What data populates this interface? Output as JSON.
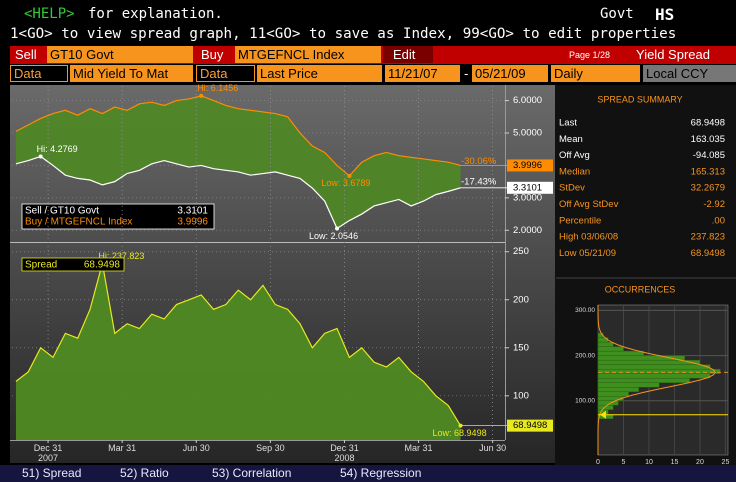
{
  "header": {
    "help_key": "<HELP>",
    "help_text": "for explanation.",
    "market": "Govt",
    "function": "HS",
    "instructions": "1<GO> to view spread graph, 11<GO> to save as Index, 99<GO> to edit properties"
  },
  "form": {
    "sell_label": "Sell",
    "sell_security": "GT10 Govt",
    "buy_label": "Buy",
    "buy_security": "MTGEFNCL Index",
    "edit": "Edit",
    "page": "Page 1/28",
    "view": "Yield Spread",
    "sell_data_label": "Data",
    "sell_field": "Mid Yield To Mat",
    "buy_data_label": "Data",
    "buy_field": "Last Price",
    "start_date": "11/21/07",
    "date_separator": "-",
    "end_date": "05/21/09",
    "periodicity": "Daily",
    "currency": "Local CCY"
  },
  "chart_data": [
    {
      "type": "line",
      "x": [
        0,
        0.5,
        1,
        1.5,
        2,
        2.5,
        3,
        3.5,
        4,
        4.5,
        5,
        5.5,
        6,
        6.5,
        7,
        7.5,
        8,
        8.5,
        9,
        9.5,
        10,
        10.5,
        11,
        11.5,
        12,
        12.5,
        13,
        13.5,
        14,
        14.5,
        15,
        15.5,
        16,
        16.5,
        17,
        17.5,
        18
      ],
      "series": [
        {
          "name": "Sell / GT10 Govt",
          "color": "#ffffff",
          "values": [
            4.05,
            4.15,
            4.2769,
            4.0,
            3.7,
            3.6,
            3.55,
            3.4,
            3.5,
            3.75,
            3.85,
            4.05,
            4.15,
            4.05,
            3.95,
            4.0,
            3.9,
            3.85,
            3.8,
            3.7,
            3.75,
            3.8,
            3.7,
            3.6,
            3.3,
            2.9,
            2.0546,
            2.3,
            2.5,
            2.75,
            2.85,
            2.95,
            2.75,
            2.9,
            3.1,
            3.2,
            3.3101
          ],
          "high_label": "Hi: 4.2769",
          "low_label": "Low: 2.0546",
          "change_label": "-17.43%"
        },
        {
          "name": "Buy / MTGEFNCL Index",
          "color": "#ff8c00",
          "values": [
            5.05,
            5.25,
            5.45,
            5.6,
            5.7,
            5.55,
            5.75,
            5.6,
            5.8,
            5.7,
            5.9,
            5.95,
            5.85,
            6.0,
            6.05,
            6.1456,
            6.0,
            5.85,
            5.75,
            5.7,
            5.65,
            5.6,
            5.5,
            5.0,
            4.6,
            4.4,
            4.0,
            3.6789,
            4.1,
            4.3,
            4.4,
            4.3,
            4.25,
            4.2,
            4.15,
            4.1,
            3.9996
          ],
          "high_label": "Hi: 6.1456",
          "low_label": "Low: 3.6789",
          "change_label": "-30.06%"
        }
      ],
      "xlim": [
        -0.16,
        19.8
      ],
      "ylim": [
        1.7,
        6.45
      ],
      "yticks": [
        {
          "value": 2,
          "label": "2.0000"
        },
        {
          "value": 3,
          "label": "3.0000"
        },
        {
          "value": 4,
          "label": "4.0000"
        },
        {
          "value": 5,
          "label": "5.0000"
        },
        {
          "value": 6,
          "label": "6.0000"
        }
      ]
    },
    {
      "type": "area",
      "x": [
        0,
        0.5,
        1,
        1.5,
        2,
        2.5,
        3,
        3.5,
        4,
        4.5,
        5,
        5.5,
        6,
        6.5,
        7,
        7.5,
        8,
        8.5,
        9,
        9.5,
        10,
        10.5,
        11,
        11.5,
        12,
        12.5,
        13,
        13.5,
        14,
        14.5,
        15,
        15.5,
        16,
        16.5,
        17,
        17.5,
        18
      ],
      "series": [
        {
          "name": "Spread",
          "color": "#e8e820",
          "values": [
            115,
            125,
            150,
            140,
            165,
            160,
            190,
            237.823,
            165,
            175,
            170,
            185,
            180,
            195,
            200,
            205,
            190,
            195,
            210,
            200,
            215,
            195,
            190,
            175,
            150,
            165,
            170,
            140,
            150,
            135,
            130,
            140,
            125,
            115,
            100,
            90,
            68.9498
          ],
          "high_label": "Hi: 237.823",
          "low_label": "Low: 68.9498"
        }
      ],
      "xlim": [
        -0.16,
        19.8
      ],
      "ylim": [
        54,
        257
      ],
      "xticks": [
        {
          "value": 1.3,
          "label": "Dec 31\n2007"
        },
        {
          "value": 4.3,
          "label": "Mar 31"
        },
        {
          "value": 7.3,
          "label": "Jun 30"
        },
        {
          "value": 10.3,
          "label": "Sep 30"
        },
        {
          "value": 13.3,
          "label": "Dec 31\n2008"
        },
        {
          "value": 16.3,
          "label": "Mar 31"
        },
        {
          "value": 19.3,
          "label": "Jun 30"
        }
      ],
      "yticks": [
        100,
        150,
        200,
        250
      ]
    },
    {
      "type": "histogram",
      "title": "OCCURRENCES",
      "color": "#3f8f1f",
      "bins": [
        60,
        70,
        80,
        90,
        100,
        110,
        120,
        130,
        140,
        150,
        160,
        170,
        180,
        190,
        200,
        210,
        220,
        230,
        240,
        250
      ],
      "values": [
        3,
        2,
        3,
        4,
        5,
        6,
        8,
        12,
        18,
        22,
        24,
        22,
        20,
        17,
        9,
        5,
        3,
        2,
        1
      ],
      "xlim": [
        0,
        25.5
      ],
      "xticks": [
        0,
        5,
        10,
        15,
        20,
        25
      ],
      "ylim": [
        -20,
        312
      ],
      "yticks": [
        {
          "value": 100,
          "label": "100.00"
        },
        {
          "value": 200,
          "label": "200.00"
        },
        {
          "value": 300,
          "label": "300.00"
        }
      ]
    }
  ],
  "summary": {
    "title": "SPREAD SUMMARY",
    "rows": [
      {
        "label": "Last",
        "value": "68.9498"
      },
      {
        "label": "Mean",
        "value": "163.035"
      },
      {
        "label": "Off Avg",
        "value": "-94.085"
      },
      {
        "label": "Median",
        "value": "165.313"
      },
      {
        "label": "StDev",
        "value": "32.2679"
      },
      {
        "label": "Off Avg StDev",
        "value": "-2.92"
      },
      {
        "label": "Percentile",
        "value": ".00"
      },
      {
        "label": "High 03/06/08",
        "value": "237.823"
      },
      {
        "label": "Low 05/21/09",
        "value": "68.9498"
      }
    ]
  },
  "menu": [
    "51) Spread",
    "52) Ratio",
    "53) Correlation",
    "54) Regression"
  ]
}
